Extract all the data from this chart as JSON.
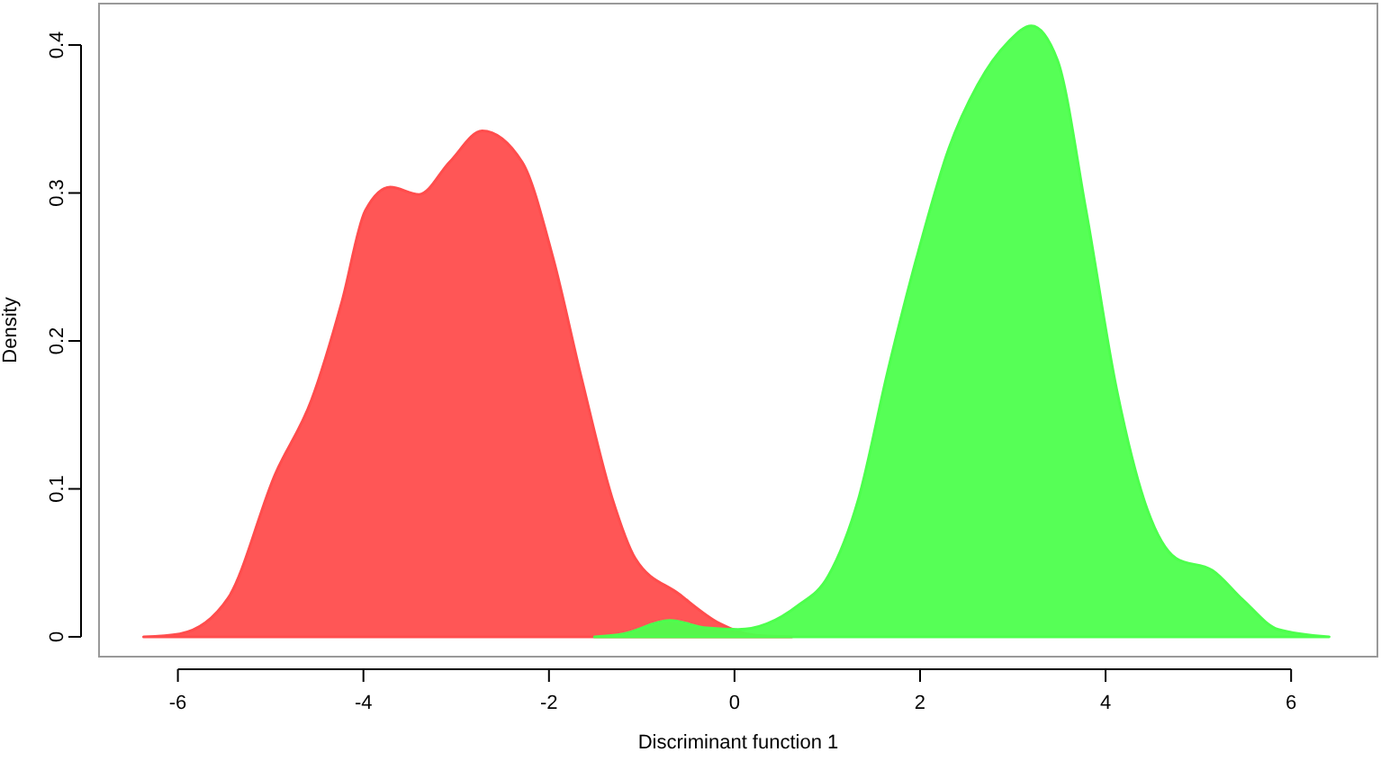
{
  "chart_data": {
    "type": "area",
    "xlabel": "Discriminant function 1",
    "ylabel": "Density",
    "xlim": [
      -6.85,
      6.93
    ],
    "ylim": [
      -0.0134,
      0.428
    ],
    "xticks": [
      -6,
      -4,
      -2,
      0,
      2,
      4,
      6
    ],
    "yticks": [
      0,
      0.1,
      0.2,
      0.3,
      0.4
    ],
    "grid": false,
    "series": [
      {
        "color": "#ff4d4d",
        "x": [
          -6.37,
          -5.98,
          -5.46,
          -4.95,
          -4.56,
          -4.23,
          -3.98,
          -3.71,
          -3.4,
          -3.07,
          -2.72,
          -2.29,
          -1.96,
          -1.65,
          -1.32,
          -1.07,
          -0.6,
          -0.16,
          0.23,
          0.62
        ],
        "values": [
          0,
          0.002,
          0.026,
          0.11,
          0.16,
          0.227,
          0.288,
          0.304,
          0.299,
          0.321,
          0.342,
          0.321,
          0.257,
          0.175,
          0.094,
          0.053,
          0.029,
          0.009,
          0.001,
          0
        ]
      },
      {
        "color": "#4dff4d",
        "x": [
          -1.51,
          -1.2,
          -0.7,
          -0.3,
          0.04,
          0.68,
          1.01,
          1.34,
          1.65,
          1.98,
          2.31,
          2.62,
          2.95,
          3.2,
          3.48,
          3.79,
          4.12,
          4.45,
          4.76,
          5.15,
          5.48,
          5.86,
          6.41
        ],
        "values": [
          0,
          0.002,
          0.011,
          0.006,
          0.005,
          0.021,
          0.041,
          0.094,
          0.179,
          0.26,
          0.33,
          0.373,
          0.402,
          0.413,
          0.39,
          0.288,
          0.167,
          0.086,
          0.053,
          0.045,
          0.025,
          0.005,
          0
        ]
      }
    ]
  }
}
